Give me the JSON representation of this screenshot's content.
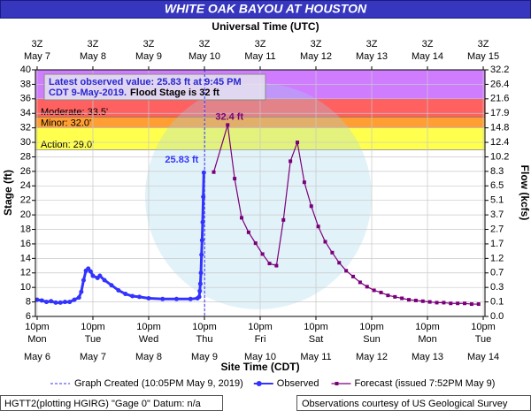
{
  "chart_data": {
    "type": "line",
    "title": "WHITE OAK BAYOU AT HOUSTON",
    "top_axis_title": "Universal Time (UTC)",
    "xlabel": "Site Time (CDT)",
    "ylabel": "Stage (ft)",
    "y2label": "Flow (kcfs)",
    "grid": true,
    "xlim": [
      "May 6 21:15",
      "May 14 22:45"
    ],
    "xticks": [
      {
        "value": "May 6 22:00",
        "label": "10pm",
        "weekday": "Mon",
        "date": "May 6",
        "utc_label": "3Z",
        "utc_date": "May 7"
      },
      {
        "value": "May 7 22:00",
        "label": "10pm",
        "weekday": "Tue",
        "date": "May 7",
        "utc_label": "3Z",
        "utc_date": "May 8"
      },
      {
        "value": "May 8 22:00",
        "label": "10pm",
        "weekday": "Wed",
        "date": "May 8",
        "utc_label": "3Z",
        "utc_date": "May 9"
      },
      {
        "value": "May 9 22:00",
        "label": "10pm",
        "weekday": "Thu",
        "date": "May 9",
        "utc_label": "3Z",
        "utc_date": "May 10"
      },
      {
        "value": "May 10 22:00",
        "label": "10pm",
        "weekday": "Fri",
        "date": "May 10",
        "utc_label": "3Z",
        "utc_date": "May 11"
      },
      {
        "value": "May 11 22:00",
        "label": "10pm",
        "weekday": "Sat",
        "date": "May 11",
        "utc_label": "3Z",
        "utc_date": "May 12"
      },
      {
        "value": "May 12 22:00",
        "label": "10pm",
        "weekday": "Sun",
        "date": "May 12",
        "utc_label": "3Z",
        "utc_date": "May 13"
      },
      {
        "value": "May 13 22:00",
        "label": "10pm",
        "weekday": "Mon",
        "date": "May 13",
        "utc_label": "3Z",
        "utc_date": "May 14"
      },
      {
        "value": "May 14 22:00",
        "label": "10pm",
        "weekday": "Tue",
        "date": "May 14",
        "utc_label": "3Z",
        "utc_date": "May 15"
      }
    ],
    "ylim": [
      6,
      40
    ],
    "yticks": [
      6,
      8,
      10,
      12,
      14,
      16,
      18,
      20,
      22,
      24,
      26,
      28,
      30,
      32,
      34,
      36,
      38,
      40
    ],
    "y2ticks": [
      {
        "value": 0,
        "label": "0.0"
      },
      0.1,
      0.3,
      0.7,
      1.2,
      1.7,
      2.7,
      3.7,
      5.1,
      6.5,
      8.3,
      10.2,
      12.4,
      14.8,
      17.9,
      21.6,
      26.4,
      32.2
    ],
    "flood_categories": [
      {
        "value": 29.0,
        "label": "Action: 29.0'",
        "color": "#ffff4d"
      },
      {
        "value": 32.0,
        "label": "Minor: 32.0'",
        "color": "#ff9f33"
      },
      {
        "value": 33.5,
        "label": "Moderate: 33.5'",
        "color": "#ff6060"
      },
      {
        "value": 36,
        "color": "#d07cff"
      }
    ],
    "annotation": {
      "lines": [
        "Latest observed value: 25.83 ft at 9:45 PM",
        "CDT 9-May-2019."
      ],
      "flood_stage": "Flood Stage is 32 ft"
    },
    "graph_created": {
      "x": "May 9 22:05",
      "label": "Graph Created (10:05PM May 9, 2019)",
      "color": "#3333ff"
    },
    "series": [
      {
        "name": "Observed",
        "color": "#3333ff",
        "x": [
          "May 6 22:00",
          "May 7 00:00",
          "May 7 02:00",
          "May 7 04:00",
          "May 7 06:00",
          "May 7 08:00",
          "May 7 10:00",
          "May 7 12:00",
          "May 7 14:00",
          "May 7 16:00",
          "May 7 17:00",
          "May 7 18:00",
          "May 7 19:00",
          "May 7 20:00",
          "May 7 21:00",
          "May 7 22:00",
          "May 8 00:00",
          "May 8 01:00",
          "May 8 03:00",
          "May 8 06:00",
          "May 8 09:00",
          "May 8 12:00",
          "May 8 15:00",
          "May 8 18:00",
          "May 8 22:00",
          "May 9 04:00",
          "May 9 10:00",
          "May 9 16:00",
          "May 9 19:00",
          "May 9 19:45",
          "May 9 20:00",
          "May 9 20:15",
          "May 9 20:30",
          "May 9 20:45",
          "May 9 21:00",
          "May 9 21:15",
          "May 9 21:30",
          "May 9 21:45"
        ],
        "values": [
          8.3,
          8.2,
          8.0,
          8.1,
          7.9,
          7.9,
          8.0,
          8.0,
          8.3,
          8.6,
          9.4,
          11.0,
          12.3,
          12.6,
          12.2,
          11.6,
          11.3,
          11.6,
          11.0,
          10.3,
          9.6,
          9.1,
          8.8,
          8.7,
          8.5,
          8.4,
          8.4,
          8.4,
          8.5,
          8.7,
          9.5,
          10.5,
          12.0,
          14.5,
          16.5,
          19.0,
          22.5,
          25.83
        ],
        "value_labels": [
          null,
          null,
          null,
          null,
          null,
          null,
          null,
          null,
          null,
          null,
          null,
          null,
          null,
          null,
          null,
          null,
          null,
          null,
          null,
          null,
          null,
          null,
          null,
          null,
          null,
          null,
          null,
          null,
          null,
          null,
          null,
          null,
          null,
          null,
          null,
          null,
          null,
          "25.83 ft"
        ]
      },
      {
        "name": "Forecast (issued 7:52PM May 9)",
        "color": "#7a007a",
        "x": [
          "May 10 02:00",
          "May 10 08:00",
          "May 10 11:00",
          "May 10 14:00",
          "May 10 17:00",
          "May 10 20:00",
          "May 10 23:00",
          "May 11 02:00",
          "May 11 05:00",
          "May 11 08:00",
          "May 11 11:00",
          "May 11 14:00",
          "May 11 17:00",
          "May 11 20:00",
          "May 11 23:00",
          "May 12 02:00",
          "May 12 05:00",
          "May 12 08:00",
          "May 12 11:00",
          "May 12 14:00",
          "May 12 17:00",
          "May 12 20:00",
          "May 12 23:00",
          "May 13 02:00",
          "May 13 05:00",
          "May 13 08:00",
          "May 13 11:00",
          "May 13 14:00",
          "May 13 17:00",
          "May 13 20:00",
          "May 13 23:00",
          "May 14 02:00",
          "May 14 05:00",
          "May 14 08:00",
          "May 14 11:00",
          "May 14 14:00",
          "May 14 17:00",
          "May 14 20:00"
        ],
        "values": [
          25.9,
          32.4,
          25.0,
          19.6,
          17.6,
          16.1,
          14.6,
          13.3,
          13.0,
          19.3,
          27.4,
          30.0,
          24.5,
          21.2,
          18.4,
          16.3,
          14.8,
          13.4,
          12.3,
          11.5,
          10.7,
          10.1,
          9.6,
          9.3,
          8.9,
          8.7,
          8.5,
          8.3,
          8.2,
          8.1,
          8.0,
          7.9,
          7.9,
          7.8,
          7.8,
          7.8,
          7.7,
          7.7
        ],
        "value_labels": [
          null,
          "32.4 ft",
          null,
          null,
          null,
          null,
          null,
          null,
          null,
          null,
          null,
          null,
          null,
          null,
          null,
          null,
          null,
          null,
          null,
          null,
          null,
          null,
          null,
          null,
          null,
          null,
          null,
          null,
          null,
          null,
          null,
          null,
          null,
          null,
          null,
          null,
          null,
          null
        ]
      }
    ],
    "footer_left": "HGTT2(plotting HGIRG) \"Gage 0\" Datum: n/a",
    "footer_right": "Observations courtesy of US Geological Survey"
  }
}
